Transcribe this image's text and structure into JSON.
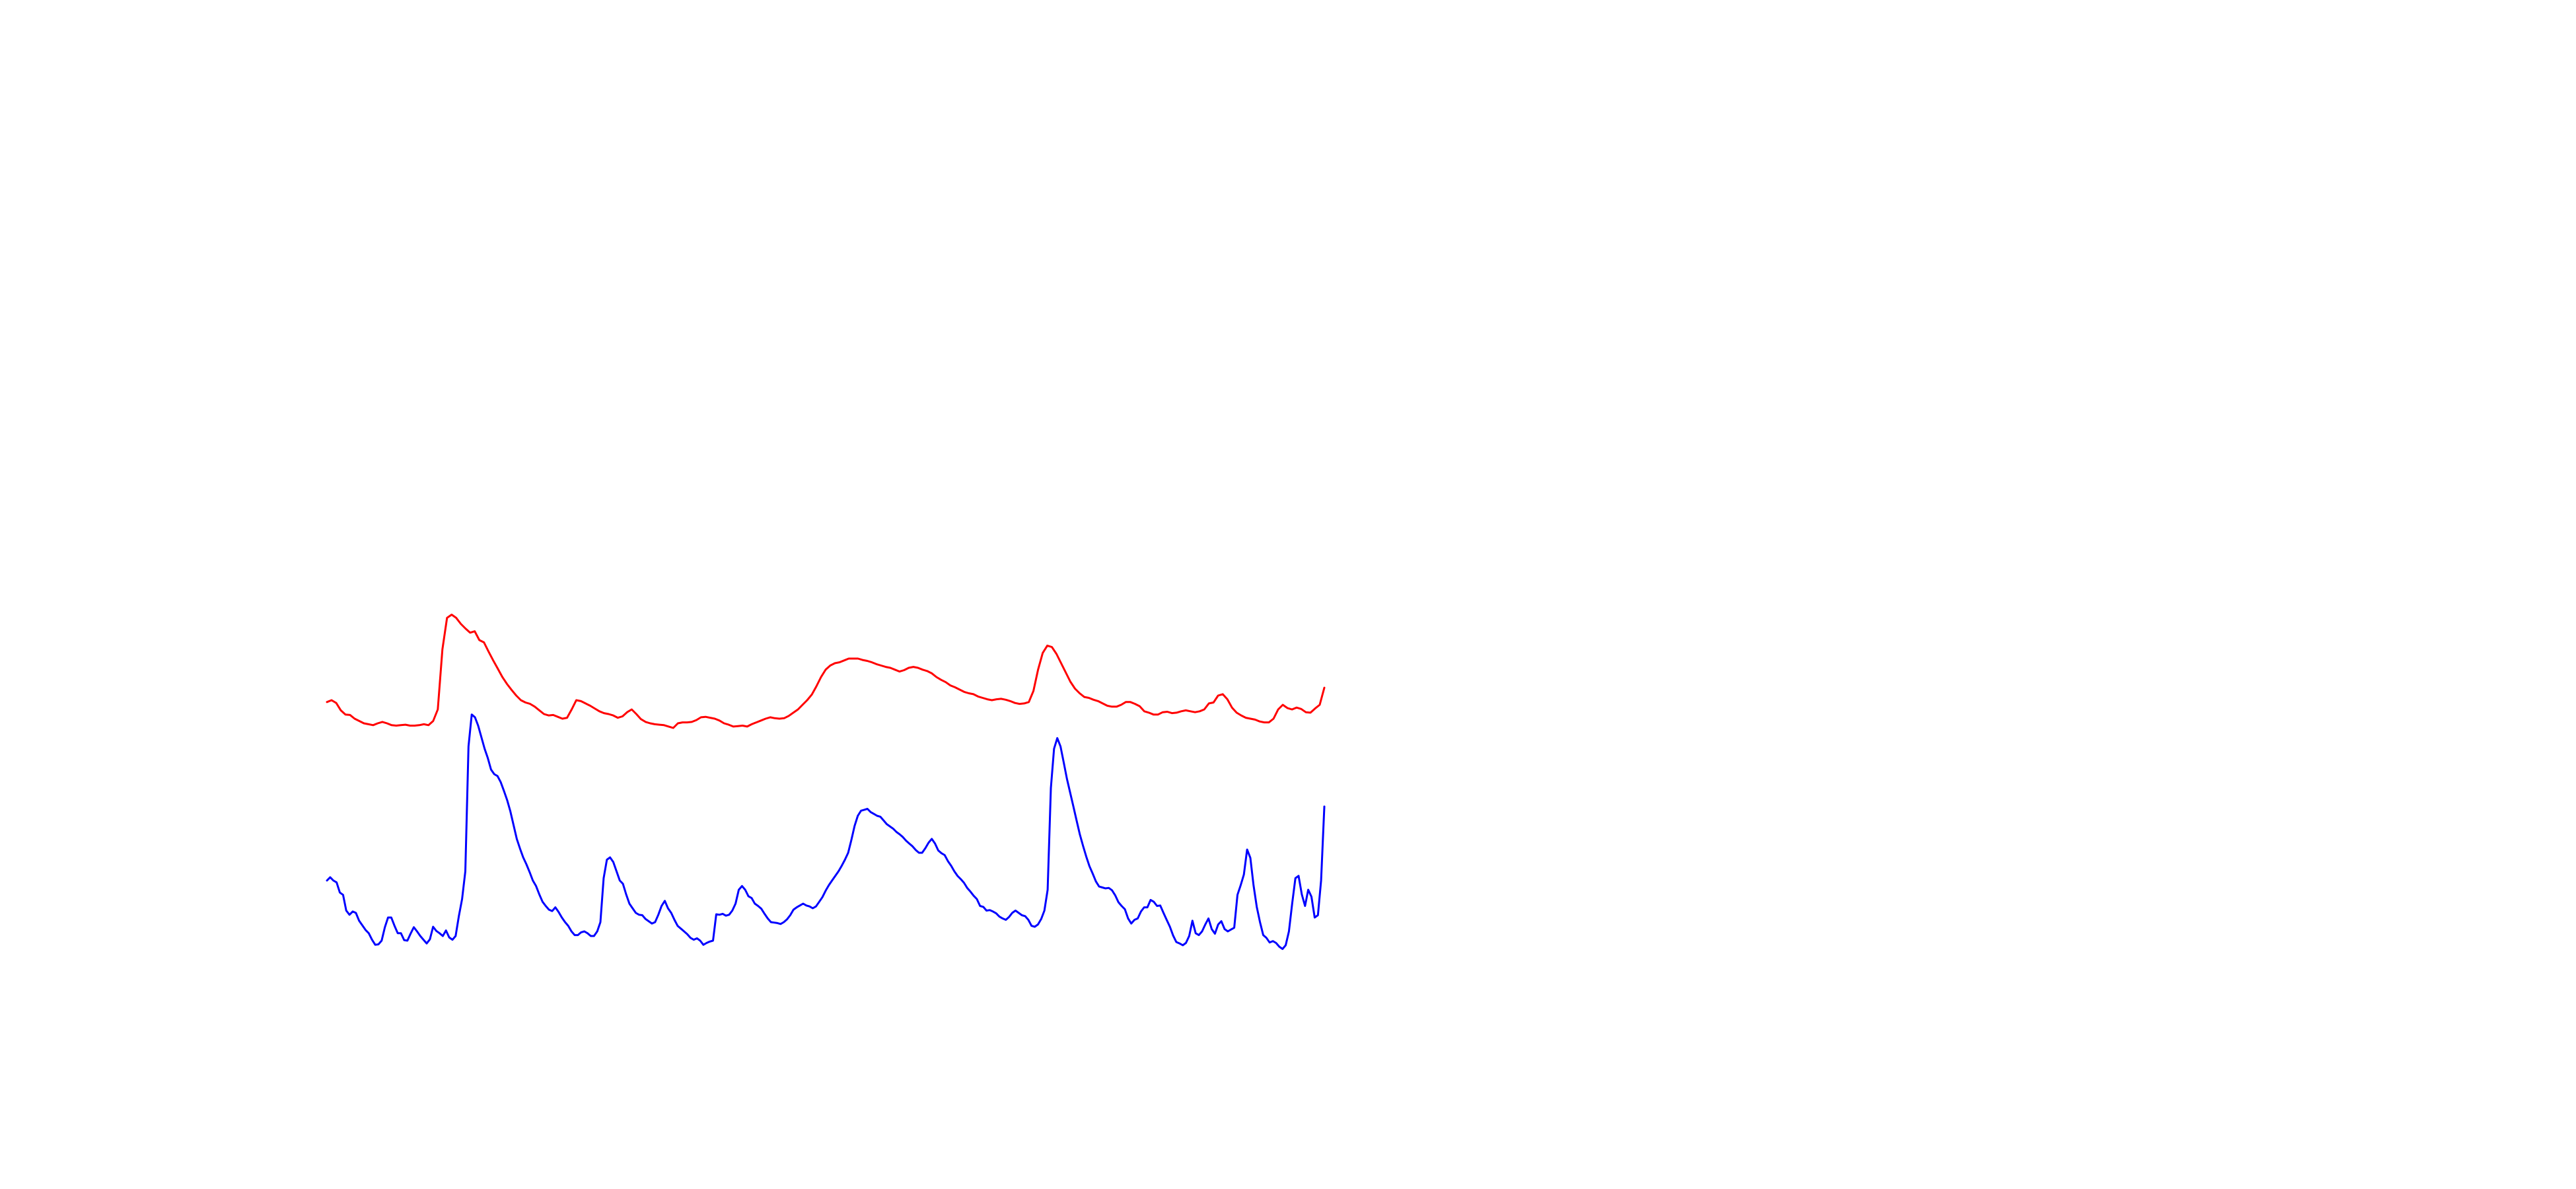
{
  "chart_data": {
    "type": "line",
    "x_range": [
      0,
      300
    ],
    "y_range": [
      0,
      100
    ],
    "grid": false,
    "axes_visible": false,
    "series": [
      {
        "color": "#ff0000",
        "values": [
          54.6,
          55.0,
          54.4,
          52.8,
          51.9,
          51.8,
          51.0,
          50.5,
          50.0,
          49.8,
          49.6,
          50.0,
          50.3,
          50.0,
          49.6,
          49.5,
          49.6,
          49.7,
          49.5,
          49.5,
          49.6,
          49.8,
          49.6,
          50.5,
          53.0,
          66.0,
          72.8,
          73.5,
          72.8,
          71.5,
          70.5,
          69.6,
          69.9,
          68.0,
          67.5,
          65.5,
          63.6,
          61.8,
          60.0,
          58.5,
          57.2,
          56.0,
          55.0,
          54.5,
          54.2,
          53.6,
          52.8,
          52.0,
          51.7,
          51.8,
          51.4,
          51.0,
          51.2,
          53.0,
          55.0,
          54.8,
          54.3,
          53.8,
          53.2,
          52.6,
          52.2,
          52.0,
          51.7,
          51.2,
          51.5,
          52.4,
          53.0,
          52.0,
          50.9,
          50.3,
          50.0,
          49.8,
          49.7,
          49.6,
          49.3,
          49.0,
          50.0,
          50.2,
          50.2,
          50.3,
          50.7,
          51.3,
          51.4,
          51.2,
          51.0,
          50.6,
          50.0,
          49.7,
          49.3,
          49.4,
          49.5,
          49.3,
          49.8,
          50.2,
          50.6,
          51.0,
          51.3,
          51.1,
          51.0,
          51.1,
          51.6,
          52.3,
          53.0,
          54.0,
          55.0,
          56.2,
          58.0,
          60.0,
          61.6,
          62.5,
          63.0,
          63.2,
          63.6,
          64.0,
          64.0,
          64.0,
          63.7,
          63.5,
          63.2,
          62.8,
          62.5,
          62.2,
          62.0,
          61.6,
          61.2,
          61.5,
          62.0,
          62.2,
          62.0,
          61.6,
          61.3,
          60.8,
          60.0,
          59.4,
          58.9,
          58.2,
          57.8,
          57.3,
          56.8,
          56.5,
          56.3,
          55.8,
          55.5,
          55.2,
          55.0,
          55.2,
          55.3,
          55.1,
          54.8,
          54.4,
          54.2,
          54.3,
          54.6,
          57.0,
          61.6,
          65.2,
          66.8,
          66.5,
          65.0,
          63.0,
          61.0,
          59.0,
          57.5,
          56.5,
          55.7,
          55.5,
          55.1,
          54.8,
          54.3,
          53.8,
          53.6,
          53.6,
          54.0,
          54.6,
          54.6,
          54.2,
          53.7,
          52.6,
          52.3,
          51.9,
          51.9,
          52.4,
          52.5,
          52.2,
          52.3,
          52.6,
          52.8,
          52.6,
          52.4,
          52.6,
          53.0,
          54.3,
          54.5,
          56.0,
          56.3,
          55.2,
          53.4,
          52.3,
          51.7,
          51.2,
          51.0,
          50.8,
          50.4,
          50.2,
          50.2,
          51.0,
          53.0,
          54.0,
          53.3,
          53.0,
          53.4,
          53.1,
          52.4,
          52.3,
          53.2,
          54.0,
          57.7
        ]
      },
      {
        "color": "#0000ff",
        "values": [
          16.0,
          16.7,
          16.0,
          15.6,
          13.4,
          12.9,
          9.5,
          8.6,
          9.3,
          9.0,
          7.3,
          6.3,
          5.3,
          4.6,
          3.2,
          2.1,
          2.2,
          3.0,
          5.9,
          8.0,
          8.0,
          6.2,
          4.6,
          4.6,
          3.1,
          3.0,
          4.5,
          5.9,
          5.0,
          4.0,
          3.2,
          2.4,
          3.3,
          6.0,
          5.1,
          4.6,
          4.0,
          5.2,
          3.7,
          3.2,
          4.0,
          8.3,
          12.0,
          18.0,
          45.0,
          51.9,
          51.3,
          49.5,
          47.0,
          44.5,
          42.5,
          40.0,
          39.0,
          38.6,
          37.3,
          35.4,
          33.4,
          31.0,
          28.0,
          25.0,
          22.9,
          21.0,
          19.5,
          17.8,
          16.0,
          14.8,
          13.0,
          11.4,
          10.5,
          9.7,
          9.4,
          10.2,
          9.2,
          8.0,
          7.0,
          6.2,
          5.0,
          4.2,
          4.2,
          4.8,
          5.0,
          4.6,
          4.0,
          4.0,
          5.0,
          7.0,
          16.5,
          20.5,
          21.0,
          20.0,
          18.0,
          16.0,
          15.3,
          13.0,
          11.0,
          10.0,
          9.0,
          8.6,
          8.5,
          7.7,
          7.2,
          6.7,
          7.0,
          8.6,
          10.5,
          11.6,
          10.0,
          9.0,
          7.5,
          6.2,
          5.6,
          5.0,
          4.4,
          3.6,
          3.2,
          3.5,
          3.0,
          2.1,
          2.5,
          2.8,
          3.0,
          8.7,
          8.6,
          8.8,
          8.4,
          8.6,
          9.5,
          11.0,
          14.0,
          14.8,
          14.0,
          12.6,
          12.2,
          11.0,
          10.5,
          9.9,
          8.8,
          7.8,
          7.0,
          6.9,
          6.8,
          6.6,
          7.0,
          7.6,
          8.5,
          9.7,
          10.2,
          10.6,
          11.0,
          10.6,
          10.4,
          10.0,
          10.4,
          11.4,
          12.4,
          13.8,
          15.0,
          16.0,
          17.0,
          18.0,
          19.2,
          20.5,
          22.0,
          24.8,
          27.8,
          30.0,
          31.1,
          31.3,
          31.5,
          30.8,
          30.4,
          30.0,
          29.8,
          29.0,
          28.2,
          27.7,
          27.2,
          26.5,
          26.0,
          25.4,
          24.6,
          24.0,
          23.4,
          22.6,
          22.0,
          22.0,
          23.0,
          24.2,
          25.0,
          24.0,
          22.5,
          21.9,
          21.5,
          20.2,
          19.2,
          18.0,
          17.0,
          16.3,
          15.5,
          14.4,
          13.6,
          12.7,
          12.0,
          10.5,
          10.3,
          9.5,
          9.6,
          9.3,
          8.9,
          8.2,
          7.8,
          7.5,
          8.1,
          9.0,
          9.5,
          9.0,
          8.5,
          8.3,
          7.5,
          6.2,
          6.0,
          6.5,
          7.7,
          9.5,
          14.0,
          36.0,
          44.5,
          46.8,
          45.0,
          41.5,
          38.0,
          35.0,
          32.0,
          29.0,
          26.0,
          23.5,
          21.2,
          19.1,
          17.5,
          15.8,
          14.7,
          14.5,
          14.3,
          14.4,
          13.9,
          12.8,
          11.3,
          10.5,
          9.8,
          7.8,
          6.7,
          7.5,
          7.8,
          9.3,
          10.2,
          10.2,
          11.8,
          11.4,
          10.5,
          10.6,
          9.0,
          7.5,
          6.0,
          4.1,
          2.7,
          2.4,
          2.0,
          2.5,
          4.0,
          7.3,
          4.6,
          4.2,
          5.0,
          6.5,
          7.8,
          5.5,
          4.5,
          6.5,
          7.2,
          5.5,
          5.0,
          5.4,
          5.8,
          12.9,
          15.0,
          17.3,
          22.7,
          20.9,
          15.0,
          10.3,
          7.0,
          4.2,
          3.6,
          2.6,
          2.9,
          2.5,
          1.7,
          1.2,
          2.0,
          5.0,
          11.0,
          16.5,
          17.0,
          13.0,
          10.5,
          14.0,
          12.5,
          8.0,
          8.5,
          16.0,
          32.0
        ]
      }
    ]
  }
}
